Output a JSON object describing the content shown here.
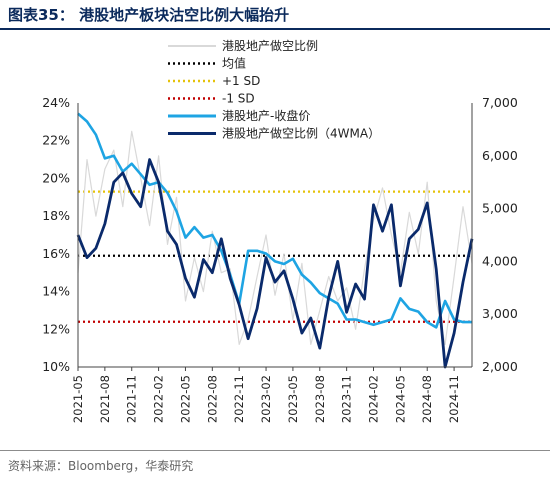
{
  "figure": {
    "title": "图表35：  港股地产板块沽空比例大幅抬升",
    "source": "资料来源：Bloomberg，华泰研究"
  },
  "chart_data": {
    "type": "line",
    "left_axis": {
      "min": 0.1,
      "max": 0.24,
      "step": 0.02,
      "tick_labels": [
        "10%",
        "12%",
        "14%",
        "16%",
        "18%",
        "20%",
        "22%",
        "24%"
      ]
    },
    "right_axis": {
      "min": 2000,
      "max": 7000,
      "step": 1000,
      "tick_labels": [
        "2,000",
        "3,000",
        "4,000",
        "5,000",
        "6,000",
        "7,000"
      ]
    },
    "x_axis": {
      "start": "2021-05",
      "end": "2025-01",
      "tick_labels": [
        "2021-05",
        "2021-08",
        "2021-11",
        "2022-02",
        "2022-05",
        "2022-08",
        "2022-11",
        "2023-02",
        "2023-05",
        "2023-08",
        "2023-11",
        "2024-02",
        "2024-05",
        "2024-08",
        "2024-11"
      ]
    },
    "legend": {
      "placement": "top",
      "entries": [
        {
          "label": "港股地产做空比例",
          "color": "#d9d9d9",
          "style": "solid"
        },
        {
          "label": "均值",
          "color": "#000000",
          "style": "dotted"
        },
        {
          "label": "+1 SD",
          "color": "#e6c20a",
          "style": "dotted"
        },
        {
          "label": "-1 SD",
          "color": "#c00000",
          "style": "dotted"
        },
        {
          "label": "港股地产-收盘价",
          "color": "#1ea4e3",
          "style": "solid"
        },
        {
          "label": "港股地产做空比例（4WMA）",
          "color": "#0a2a6b",
          "style": "solid"
        }
      ]
    },
    "reference_lines": {
      "mean": 0.159,
      "plus_1sd": 0.193,
      "minus_1sd": 0.124
    },
    "series": [
      {
        "name": "港股地产做空比例（4WMA）",
        "axis": "left",
        "color": "#0a2a6b",
        "x": [
          "2021-05",
          "2021-06",
          "2021-07",
          "2021-08",
          "2021-09",
          "2021-10",
          "2021-11",
          "2021-12",
          "2022-01",
          "2022-02",
          "2022-03",
          "2022-04",
          "2022-05",
          "2022-06",
          "2022-07",
          "2022-08",
          "2022-09",
          "2022-10",
          "2022-11",
          "2022-12",
          "2023-01",
          "2023-02",
          "2023-03",
          "2023-04",
          "2023-05",
          "2023-06",
          "2023-07",
          "2023-08",
          "2023-09",
          "2023-10",
          "2023-11",
          "2023-12",
          "2024-01",
          "2024-02",
          "2024-03",
          "2024-04",
          "2024-05",
          "2024-06",
          "2024-07",
          "2024-08",
          "2024-09",
          "2024-10",
          "2024-11",
          "2024-12",
          "2025-01"
        ],
        "values": [
          0.17,
          0.158,
          0.163,
          0.176,
          0.198,
          0.203,
          0.192,
          0.185,
          0.21,
          0.198,
          0.172,
          0.165,
          0.147,
          0.137,
          0.157,
          0.15,
          0.168,
          0.147,
          0.133,
          0.115,
          0.131,
          0.158,
          0.145,
          0.151,
          0.136,
          0.118,
          0.126,
          0.11,
          0.137,
          0.156,
          0.129,
          0.144,
          0.136,
          0.186,
          0.172,
          0.186,
          0.143,
          0.168,
          0.173,
          0.187,
          0.152,
          0.1,
          0.118,
          0.145,
          0.168
        ]
      },
      {
        "name": "港股地产-收盘价",
        "axis": "right",
        "color": "#1ea4e3",
        "x": [
          "2021-05",
          "2021-06",
          "2021-07",
          "2021-08",
          "2021-09",
          "2021-10",
          "2021-11",
          "2021-12",
          "2022-01",
          "2022-02",
          "2022-03",
          "2022-04",
          "2022-05",
          "2022-06",
          "2022-07",
          "2022-08",
          "2022-09",
          "2022-10",
          "2022-11",
          "2022-12",
          "2023-01",
          "2023-02",
          "2023-03",
          "2023-04",
          "2023-05",
          "2023-06",
          "2023-07",
          "2023-08",
          "2023-09",
          "2023-10",
          "2023-11",
          "2023-12",
          "2024-01",
          "2024-02",
          "2024-03",
          "2024-04",
          "2024-05",
          "2024-06",
          "2024-07",
          "2024-08",
          "2024-09",
          "2024-10",
          "2024-11",
          "2024-12",
          "2025-01"
        ],
        "values": [
          6800,
          6650,
          6400,
          5950,
          6000,
          5700,
          5850,
          5650,
          5450,
          5500,
          5300,
          4950,
          4450,
          4650,
          4450,
          4500,
          4200,
          3750,
          3200,
          4200,
          4200,
          4150,
          4000,
          3950,
          4050,
          3750,
          3600,
          3400,
          3300,
          3200,
          2900,
          2900,
          2850,
          2800,
          2850,
          2900,
          3300,
          3100,
          3050,
          2850,
          2750,
          3250,
          2900,
          2850,
          2850
        ]
      },
      {
        "name": "港股地产做空比例",
        "axis": "left",
        "color": "#d9d9d9",
        "x": [
          "2021-05",
          "2021-06",
          "2021-07",
          "2021-08",
          "2021-09",
          "2021-10",
          "2021-11",
          "2021-12",
          "2022-01",
          "2022-02",
          "2022-03",
          "2022-04",
          "2022-05",
          "2022-06",
          "2022-07",
          "2022-08",
          "2022-09",
          "2022-10",
          "2022-11",
          "2022-12",
          "2023-01",
          "2023-02",
          "2023-03",
          "2023-04",
          "2023-05",
          "2023-06",
          "2023-07",
          "2023-08",
          "2023-09",
          "2023-10",
          "2023-11",
          "2023-12",
          "2024-01",
          "2024-02",
          "2024-03",
          "2024-04",
          "2024-05",
          "2024-06",
          "2024-07",
          "2024-08",
          "2024-09",
          "2024-10",
          "2024-11",
          "2024-12",
          "2025-01"
        ],
        "values": [
          0.15,
          0.21,
          0.18,
          0.205,
          0.215,
          0.185,
          0.225,
          0.2,
          0.175,
          0.212,
          0.165,
          0.19,
          0.135,
          0.158,
          0.14,
          0.172,
          0.15,
          0.152,
          0.112,
          0.125,
          0.148,
          0.17,
          0.138,
          0.16,
          0.125,
          0.155,
          0.112,
          0.13,
          0.148,
          0.135,
          0.142,
          0.12,
          0.152,
          0.178,
          0.195,
          0.17,
          0.15,
          0.182,
          0.16,
          0.198,
          0.135,
          0.112,
          0.148,
          0.185,
          0.155
        ]
      }
    ]
  }
}
